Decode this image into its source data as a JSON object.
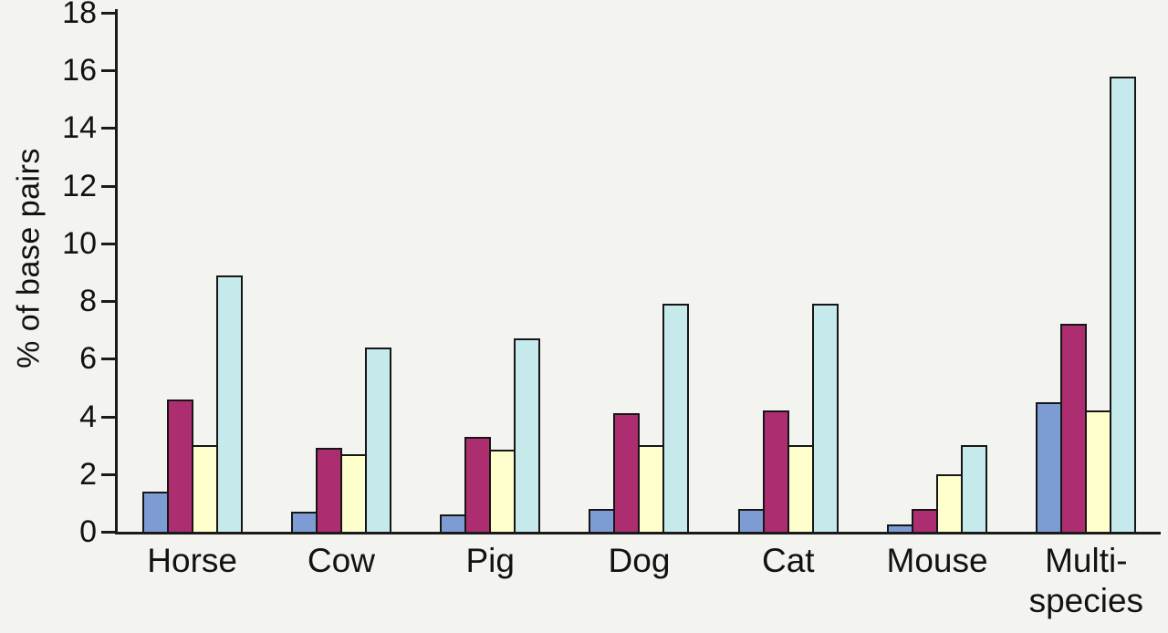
{
  "chart_data": {
    "type": "bar",
    "title": "",
    "xlabel": "",
    "ylabel": "% of base pairs",
    "ylim": [
      0,
      18
    ],
    "yticks": [
      0,
      2,
      4,
      6,
      8,
      10,
      12,
      14,
      16,
      18
    ],
    "grid": false,
    "legend": "none",
    "background_color": "#f3f3ef",
    "axis_color": "#1a1a1a",
    "categories": [
      "Horse",
      "Cow",
      "Pig",
      "Dog",
      "Cat",
      "Mouse",
      "Multi-\nspecies"
    ],
    "series": [
      {
        "name": "series-1-blue",
        "color": "#7d9cd4",
        "values": [
          1.4,
          0.7,
          0.6,
          0.8,
          0.8,
          0.25,
          4.5
        ]
      },
      {
        "name": "series-2-magenta",
        "color": "#ad2e70",
        "values": [
          4.6,
          2.9,
          3.3,
          4.1,
          4.2,
          0.8,
          7.2
        ]
      },
      {
        "name": "series-3-yellow",
        "color": "#ffffcd",
        "values": [
          3.0,
          2.7,
          2.85,
          3.0,
          3.0,
          2.0,
          4.2
        ]
      },
      {
        "name": "series-4-cyan",
        "color": "#c6e9ec",
        "values": [
          8.9,
          6.4,
          6.7,
          7.9,
          7.9,
          3.0,
          15.8
        ]
      }
    ]
  }
}
